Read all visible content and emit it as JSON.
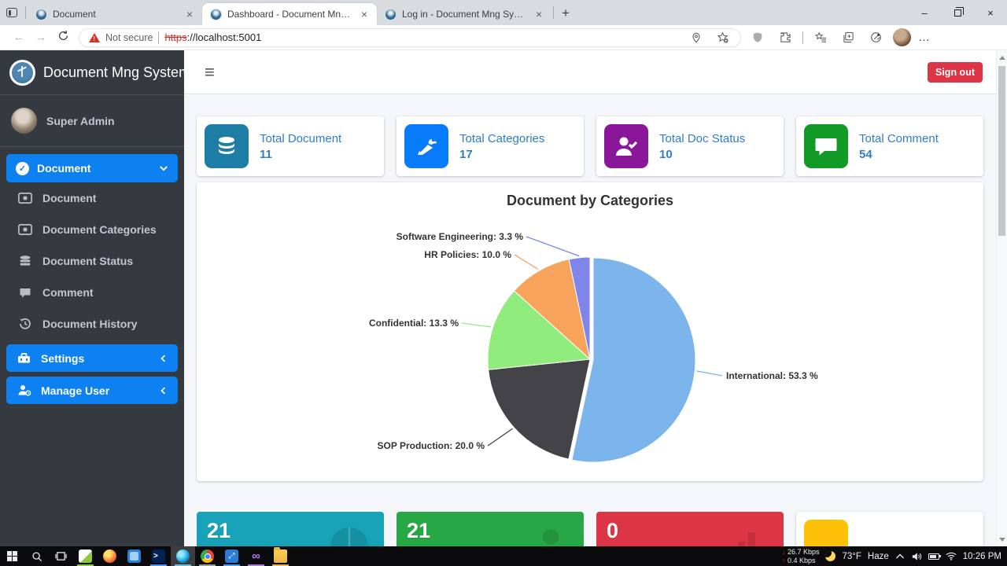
{
  "browser": {
    "tabs": [
      {
        "title": "Document"
      },
      {
        "title": "Dashboard - Document Mng Sys"
      },
      {
        "title": "Log in - Document Mng System"
      }
    ],
    "address": {
      "security_label": "Not secure",
      "scheme": "https",
      "rest": "://localhost:5001"
    }
  },
  "icons": {
    "hamburger": "≡",
    "close": "×",
    "new_tab": "+",
    "minimize": "–",
    "back": "←",
    "forward": "→",
    "ellipsis": "…",
    "check": "✓",
    "warning": "!",
    "down_arrow": "↓",
    "up_arrow": "↑",
    "powershell": ">",
    "remote": "⤢",
    "vs": "∞"
  },
  "sidebar": {
    "brand": "Document Mng System",
    "user_name": "Super Admin",
    "menu_document": {
      "label": "Document"
    },
    "items": [
      {
        "label": "Document"
      },
      {
        "label": "Document Categories"
      },
      {
        "label": "Document Status"
      },
      {
        "label": "Comment"
      },
      {
        "label": "Document History"
      }
    ],
    "settings": {
      "label": "Settings"
    },
    "manage_user": {
      "label": "Manage User"
    },
    "active_color": "#0d80f2"
  },
  "header": {
    "signout_label": "Sign out",
    "signout_color": "#dc3545"
  },
  "stats": [
    {
      "label": "Total Document",
      "value": "11",
      "color": "#1d7da4",
      "text_color": "#2c7dd1"
    },
    {
      "label": "Total Categories",
      "value": "17",
      "color": "#077bf9",
      "text_color": "#2c7dd1"
    },
    {
      "label": "Total Doc Status",
      "value": "10",
      "color": "#8a1799",
      "text_color": "#2c7dd1"
    },
    {
      "label": "Total Comment",
      "value": "54",
      "color": "#129a26",
      "text_color": "#2c7dd1"
    }
  ],
  "chart_data": {
    "type": "pie",
    "title": "Document by Categories",
    "unit": "%",
    "direction": "clockwise",
    "start_angle_deg": 0,
    "legend": false,
    "slices": [
      {
        "name": "International",
        "value": 53.3,
        "label": "International: 53.3 %",
        "color": "#7cb5ec"
      },
      {
        "name": "SOP Production",
        "value": 20.0,
        "label": "SOP Production: 20.0 %",
        "color": "#434348"
      },
      {
        "name": "Confidential",
        "value": 13.3,
        "label": "Confidential: 13.3 %",
        "color": "#90ed7d"
      },
      {
        "name": "HR Policies",
        "value": 10.0,
        "label": "HR Policies: 10.0 %",
        "color": "#f7a35c"
      },
      {
        "name": "Software Engineering",
        "value": 3.3,
        "label": "Software Engineering: 3.3 %",
        "color": "#8085e9"
      }
    ]
  },
  "bottom_boxes": [
    {
      "value": "21",
      "color": "#17a2b8"
    },
    {
      "value": "21",
      "color": "#28a745"
    },
    {
      "value": "0",
      "color": "#dc3545"
    },
    {
      "value": "",
      "color": "#ffc107"
    }
  ],
  "taskbar": {
    "net_down": "26.7 Kbps",
    "net_up": "0.4 Kbps",
    "temperature": "73°F",
    "condition": "Haze",
    "time": "10:26 PM"
  }
}
